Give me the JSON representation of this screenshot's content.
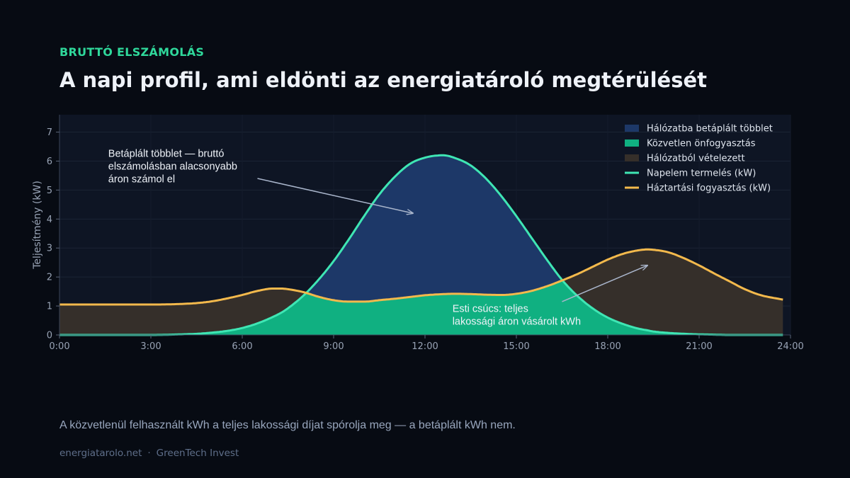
{
  "header": {
    "kicker": "BRUTTÓ ELSZÁMOLÁS",
    "title": "A napi profil, ami eldönti az energiatároló megtérülését"
  },
  "caption": "A közvetlenül felhasznált kWh a teljes lakossági díjat spórolja meg — a betáplált kWh nem.",
  "footer": {
    "site": "energiatarolo.net",
    "separator": "·",
    "brand": "GreenTech Invest"
  },
  "colors": {
    "background": "#070b13",
    "plot_bg": "#0e1524",
    "surplus": "#1d3868",
    "self_consumption": "#10b081",
    "grid_import": "#352f2a",
    "production": "#3fe6b4",
    "consumption": "#f3b94c",
    "accent": "#2fd89b"
  },
  "chart_data": {
    "type": "area",
    "ylabel": "Teljesítmény (kW)",
    "xlabel": "",
    "xlim": [
      0,
      24
    ],
    "ylim": [
      0,
      7.6
    ],
    "x_ticks": [
      0,
      3,
      6,
      9,
      12,
      15,
      18,
      21,
      24
    ],
    "x_tick_labels": [
      "0:00",
      "3:00",
      "6:00",
      "9:00",
      "12:00",
      "15:00",
      "18:00",
      "21:00",
      "24:00"
    ],
    "y_ticks": [
      0,
      1,
      2,
      3,
      4,
      5,
      6,
      7
    ],
    "y_tick_labels": [
      "0",
      "1",
      "2",
      "3",
      "4",
      "5",
      "6",
      "7"
    ],
    "grid": true,
    "legend_position": "top-right",
    "x": [
      0,
      1,
      2,
      3,
      4,
      4.5,
      5,
      5.5,
      6,
      6.5,
      7,
      7.3,
      7.5,
      8,
      8.5,
      9,
      9.5,
      10,
      10.5,
      11,
      11.5,
      12,
      12.6,
      13,
      13.5,
      14,
      14.5,
      15,
      15.5,
      16,
      16.5,
      17,
      17.5,
      18,
      18.5,
      19,
      19.3,
      19.5,
      20,
      20.5,
      21,
      21.5,
      22,
      22.5,
      23,
      23.75
    ],
    "series": [
      {
        "name": "Napelem termelés (kW)",
        "role": "line",
        "values": [
          0,
          0,
          0,
          0,
          0.02,
          0.04,
          0.08,
          0.14,
          0.24,
          0.4,
          0.62,
          0.78,
          0.92,
          1.35,
          1.9,
          2.55,
          3.3,
          4.1,
          4.85,
          5.45,
          5.9,
          6.12,
          6.2,
          6.1,
          5.85,
          5.4,
          4.8,
          4.1,
          3.35,
          2.6,
          1.9,
          1.35,
          0.92,
          0.6,
          0.38,
          0.22,
          0.16,
          0.12,
          0.07,
          0.04,
          0.02,
          0.01,
          0,
          0,
          0,
          0
        ]
      },
      {
        "name": "Háztartási fogyasztás (kW)",
        "role": "line",
        "values": [
          1.05,
          1.05,
          1.05,
          1.05,
          1.07,
          1.1,
          1.16,
          1.26,
          1.38,
          1.52,
          1.6,
          1.6,
          1.58,
          1.48,
          1.32,
          1.2,
          1.15,
          1.15,
          1.2,
          1.25,
          1.31,
          1.37,
          1.41,
          1.42,
          1.41,
          1.39,
          1.38,
          1.42,
          1.52,
          1.68,
          1.88,
          2.1,
          2.35,
          2.6,
          2.8,
          2.92,
          2.95,
          2.94,
          2.85,
          2.65,
          2.4,
          2.12,
          1.85,
          1.58,
          1.38,
          1.22
        ]
      }
    ],
    "areas": [
      {
        "name": "Hálózatba betáplált többlet",
        "definition": "termelés − fogyasztás, ahol termelés > fogyasztás"
      },
      {
        "name": "Közvetlen önfogyasztás",
        "definition": "min(termelés, fogyasztás)"
      },
      {
        "name": "Hálózatból vételezett",
        "definition": "fogyasztás − termelés, ahol fogyasztás > termelés"
      }
    ],
    "annotations": [
      {
        "text": [
          "Betáplált többlet — bruttó",
          "elszámolásban alacsonyabb",
          "áron számol el"
        ],
        "text_at": [
          1.6,
          6.15
        ],
        "from": [
          6.5,
          5.4
        ],
        "to": [
          11.6,
          4.2
        ]
      },
      {
        "text": [
          "Esti csúcs: teljes",
          "lakossági áron vásárolt kWh"
        ],
        "text_at": [
          12.9,
          0.8
        ],
        "from": [
          16.5,
          1.15
        ],
        "to": [
          19.3,
          2.4
        ]
      }
    ]
  }
}
